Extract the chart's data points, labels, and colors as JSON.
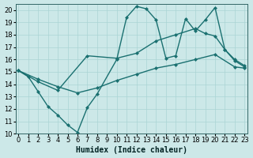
{
  "xlabel": "Humidex (Indice chaleur)",
  "bg_color": "#cce8e8",
  "line_color": "#1a7070",
  "grid_color": "#aad4d4",
  "xlim": [
    -0.3,
    23.3
  ],
  "ylim": [
    10,
    20.5
  ],
  "xticks": [
    0,
    1,
    2,
    3,
    4,
    5,
    6,
    7,
    8,
    9,
    10,
    11,
    12,
    13,
    14,
    15,
    16,
    17,
    18,
    19,
    20,
    21,
    22,
    23
  ],
  "yticks": [
    10,
    11,
    12,
    13,
    14,
    15,
    16,
    17,
    18,
    19,
    20
  ],
  "line1_x": [
    0,
    1,
    2,
    3,
    4,
    5,
    6,
    7,
    8,
    10,
    11,
    12,
    13,
    14,
    15,
    16,
    17,
    18,
    19,
    20,
    21,
    22,
    23
  ],
  "line1_y": [
    15.1,
    14.6,
    13.4,
    12.2,
    11.5,
    10.7,
    10.1,
    12.1,
    13.2,
    16.0,
    19.4,
    20.3,
    20.1,
    19.2,
    16.1,
    16.3,
    19.3,
    18.3,
    19.2,
    20.2,
    16.8,
    15.9,
    15.4
  ],
  "line2_x": [
    0,
    2,
    4,
    7,
    10,
    12,
    14,
    16,
    18,
    19,
    20,
    21,
    22,
    23
  ],
  "line2_y": [
    15.1,
    14.2,
    13.5,
    16.3,
    16.1,
    16.5,
    17.5,
    18.0,
    18.5,
    18.1,
    17.9,
    16.8,
    16.0,
    15.5
  ],
  "line3_x": [
    0,
    2,
    4,
    6,
    8,
    10,
    12,
    14,
    16,
    18,
    20,
    22,
    23
  ],
  "line3_y": [
    15.1,
    14.4,
    13.8,
    13.3,
    13.7,
    14.3,
    14.8,
    15.3,
    15.6,
    16.0,
    16.4,
    15.4,
    15.3
  ],
  "marker_size": 2.5,
  "line_width": 1.0,
  "font_size_label": 7,
  "font_size_tick": 6
}
